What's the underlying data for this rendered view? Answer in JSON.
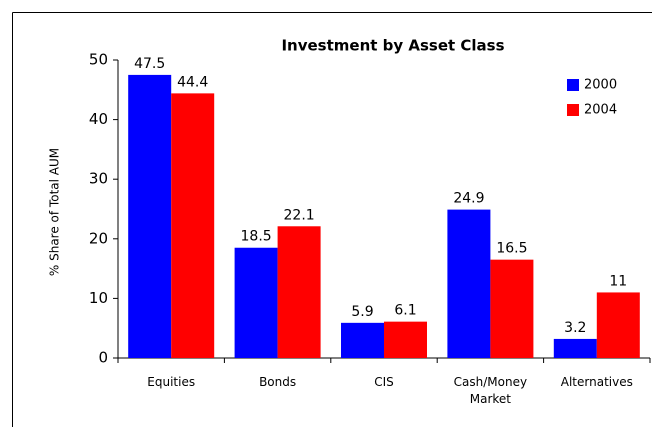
{
  "chart_data": {
    "type": "bar",
    "title": "Investment by Asset Class",
    "categories": [
      "Equities",
      "Bonds",
      "CIS",
      "Cash/Money Market",
      "Alternatives"
    ],
    "series": [
      {
        "name": "2000",
        "color": "#0000ff",
        "values": [
          47.5,
          18.5,
          5.9,
          24.9,
          3.2
        ]
      },
      {
        "name": "2004",
        "color": "#ff0000",
        "values": [
          44.4,
          22.1,
          6.1,
          16.5,
          11
        ]
      }
    ],
    "ylabel": "% Share of Total AUM",
    "ylim": [
      0,
      50
    ],
    "yticks": [
      0,
      10,
      20,
      30,
      40,
      50
    ],
    "grid": false,
    "legend": "upper right"
  }
}
